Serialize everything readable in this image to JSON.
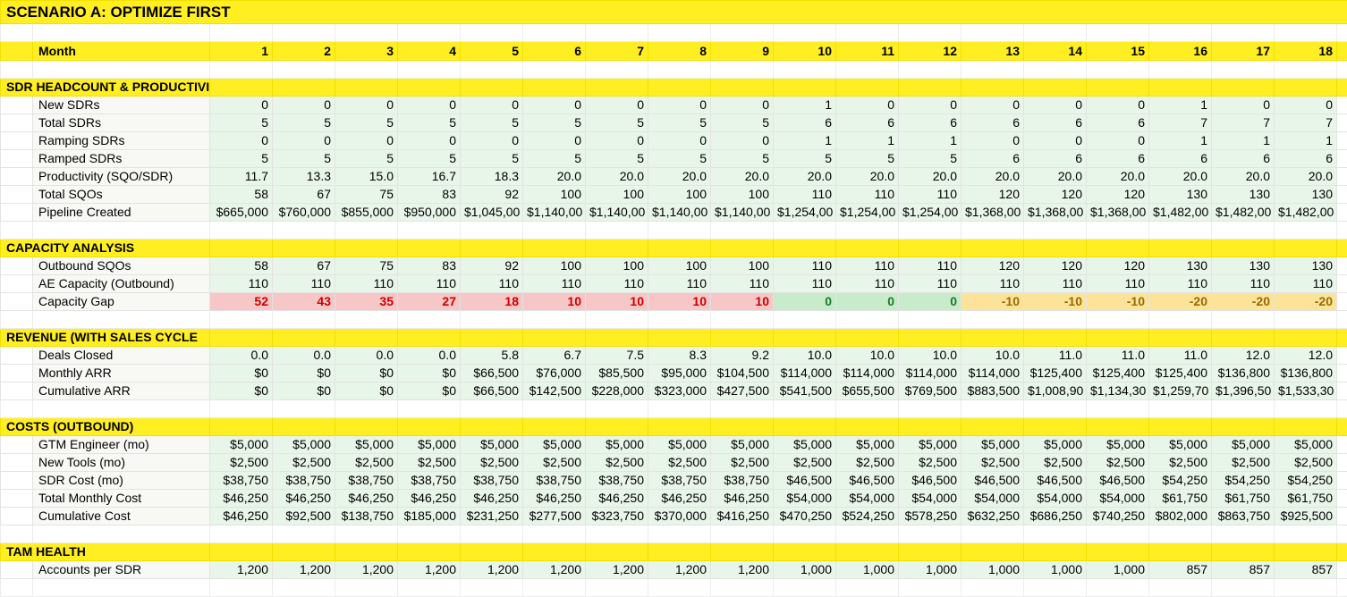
{
  "title": "SCENARIO A: OPTIMIZE FIRST",
  "month_header": "Month",
  "months": [
    "1",
    "2",
    "3",
    "4",
    "5",
    "6",
    "7",
    "8",
    "9",
    "10",
    "11",
    "12",
    "13",
    "14",
    "15",
    "16",
    "17",
    "18"
  ],
  "sections": [
    {
      "title": "SDR HEADCOUNT & PRODUCTIVI",
      "rows": [
        {
          "label": "New SDRs",
          "values": [
            "0",
            "0",
            "0",
            "0",
            "0",
            "0",
            "0",
            "0",
            "0",
            "1",
            "0",
            "0",
            "0",
            "0",
            "0",
            "1",
            "0",
            "0"
          ]
        },
        {
          "label": "Total SDRs",
          "values": [
            "5",
            "5",
            "5",
            "5",
            "5",
            "5",
            "5",
            "5",
            "5",
            "6",
            "6",
            "6",
            "6",
            "6",
            "6",
            "7",
            "7",
            "7"
          ]
        },
        {
          "label": "Ramping SDRs",
          "values": [
            "0",
            "0",
            "0",
            "0",
            "0",
            "0",
            "0",
            "0",
            "0",
            "1",
            "1",
            "1",
            "0",
            "0",
            "0",
            "1",
            "1",
            "1"
          ]
        },
        {
          "label": "Ramped SDRs",
          "values": [
            "5",
            "5",
            "5",
            "5",
            "5",
            "5",
            "5",
            "5",
            "5",
            "5",
            "5",
            "5",
            "6",
            "6",
            "6",
            "6",
            "6",
            "6"
          ]
        },
        {
          "label": "Productivity (SQO/SDR)",
          "values": [
            "11.7",
            "13.3",
            "15.0",
            "16.7",
            "18.3",
            "20.0",
            "20.0",
            "20.0",
            "20.0",
            "20.0",
            "20.0",
            "20.0",
            "20.0",
            "20.0",
            "20.0",
            "20.0",
            "20.0",
            "20.0"
          ]
        },
        {
          "label": "Total SQOs",
          "values": [
            "58",
            "67",
            "75",
            "83",
            "92",
            "100",
            "100",
            "100",
            "100",
            "110",
            "110",
            "110",
            "120",
            "120",
            "120",
            "130",
            "130",
            "130"
          ]
        },
        {
          "label": "Pipeline Created",
          "values": [
            "$665,000",
            "$760,000",
            "$855,000",
            "$950,000",
            "$1,045,00",
            "$1,140,00",
            "$1,140,00",
            "$1,140,00",
            "$1,140,00",
            "$1,254,00",
            "$1,254,00",
            "$1,254,00",
            "$1,368,00",
            "$1,368,00",
            "$1,368,00",
            "$1,482,00",
            "$1,482,00",
            "$1,482,00"
          ]
        }
      ]
    },
    {
      "title": "CAPACITY ANALYSIS",
      "rows": [
        {
          "label": "Outbound SQOs",
          "values": [
            "58",
            "67",
            "75",
            "83",
            "92",
            "100",
            "100",
            "100",
            "100",
            "110",
            "110",
            "110",
            "120",
            "120",
            "120",
            "130",
            "130",
            "130"
          ]
        },
        {
          "label": "AE Capacity (Outbound)",
          "values": [
            "110",
            "110",
            "110",
            "110",
            "110",
            "110",
            "110",
            "110",
            "110",
            "110",
            "110",
            "110",
            "110",
            "110",
            "110",
            "110",
            "110",
            "110"
          ]
        },
        {
          "label": "Capacity Gap",
          "type": "gap",
          "values": [
            "52",
            "43",
            "35",
            "27",
            "18",
            "10",
            "10",
            "10",
            "10",
            "0",
            "0",
            "0",
            "-10",
            "-10",
            "-10",
            "-20",
            "-20",
            "-20"
          ]
        }
      ]
    },
    {
      "title": "REVENUE (WITH SALES CYCLE",
      "rows": [
        {
          "label": "Deals Closed",
          "values": [
            "0.0",
            "0.0",
            "0.0",
            "0.0",
            "5.8",
            "6.7",
            "7.5",
            "8.3",
            "9.2",
            "10.0",
            "10.0",
            "10.0",
            "10.0",
            "11.0",
            "11.0",
            "11.0",
            "12.0",
            "12.0"
          ]
        },
        {
          "label": "Monthly ARR",
          "values": [
            "$0",
            "$0",
            "$0",
            "$0",
            "$66,500",
            "$76,000",
            "$85,500",
            "$95,000",
            "$104,500",
            "$114,000",
            "$114,000",
            "$114,000",
            "$114,000",
            "$125,400",
            "$125,400",
            "$125,400",
            "$136,800",
            "$136,800"
          ]
        },
        {
          "label": "Cumulative ARR",
          "values": [
            "$0",
            "$0",
            "$0",
            "$0",
            "$66,500",
            "$142,500",
            "$228,000",
            "$323,000",
            "$427,500",
            "$541,500",
            "$655,500",
            "$769,500",
            "$883,500",
            "$1,008,90",
            "$1,134,30",
            "$1,259,70",
            "$1,396,50",
            "$1,533,30"
          ]
        }
      ]
    },
    {
      "title": "COSTS (OUTBOUND)",
      "rows": [
        {
          "label": "GTM Engineer (mo)",
          "values": [
            "$5,000",
            "$5,000",
            "$5,000",
            "$5,000",
            "$5,000",
            "$5,000",
            "$5,000",
            "$5,000",
            "$5,000",
            "$5,000",
            "$5,000",
            "$5,000",
            "$5,000",
            "$5,000",
            "$5,000",
            "$5,000",
            "$5,000",
            "$5,000"
          ]
        },
        {
          "label": "New Tools (mo)",
          "values": [
            "$2,500",
            "$2,500",
            "$2,500",
            "$2,500",
            "$2,500",
            "$2,500",
            "$2,500",
            "$2,500",
            "$2,500",
            "$2,500",
            "$2,500",
            "$2,500",
            "$2,500",
            "$2,500",
            "$2,500",
            "$2,500",
            "$2,500",
            "$2,500"
          ]
        },
        {
          "label": "SDR Cost (mo)",
          "values": [
            "$38,750",
            "$38,750",
            "$38,750",
            "$38,750",
            "$38,750",
            "$38,750",
            "$38,750",
            "$38,750",
            "$38,750",
            "$46,500",
            "$46,500",
            "$46,500",
            "$46,500",
            "$46,500",
            "$46,500",
            "$54,250",
            "$54,250",
            "$54,250"
          ]
        },
        {
          "label": "Total Monthly Cost",
          "values": [
            "$46,250",
            "$46,250",
            "$46,250",
            "$46,250",
            "$46,250",
            "$46,250",
            "$46,250",
            "$46,250",
            "$46,250",
            "$54,000",
            "$54,000",
            "$54,000",
            "$54,000",
            "$54,000",
            "$54,000",
            "$61,750",
            "$61,750",
            "$61,750"
          ]
        },
        {
          "label": "Cumulative Cost",
          "values": [
            "$46,250",
            "$92,500",
            "$138,750",
            "$185,000",
            "$231,250",
            "$277,500",
            "$323,750",
            "$370,000",
            "$416,250",
            "$470,250",
            "$524,250",
            "$578,250",
            "$632,250",
            "$686,250",
            "$740,250",
            "$802,000",
            "$863,750",
            "$925,500"
          ]
        }
      ]
    },
    {
      "title": "TAM HEALTH",
      "rows": [
        {
          "label": "Accounts per SDR",
          "values": [
            "1,200",
            "1,200",
            "1,200",
            "1,200",
            "1,200",
            "1,200",
            "1,200",
            "1,200",
            "1,200",
            "1,000",
            "1,000",
            "1,000",
            "1,000",
            "1,000",
            "1,000",
            "857",
            "857",
            "857"
          ]
        }
      ]
    }
  ]
}
